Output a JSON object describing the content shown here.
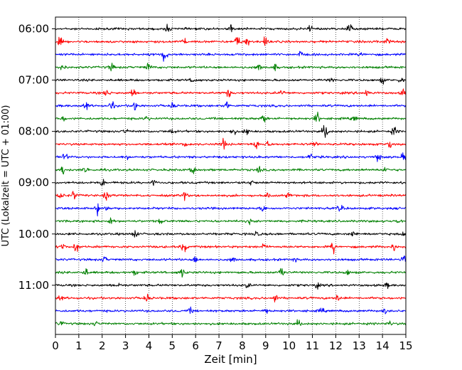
{
  "chart_data": {
    "type": "line",
    "subtype": "helicorder",
    "title": "",
    "xlabel": "Zeit  [min]",
    "ylabel": "UTC (Lokalzeit = UTC + 01:00)",
    "xlim": [
      0,
      15
    ],
    "x_ticks": [
      0,
      1,
      2,
      3,
      4,
      5,
      6,
      7,
      8,
      9,
      10,
      11,
      12,
      13,
      14,
      15
    ],
    "x_tick_labels": [
      "0",
      "1",
      "2",
      "3",
      "4",
      "5",
      "6",
      "7",
      "8",
      "9",
      "10",
      "11",
      "12",
      "13",
      "14",
      "15"
    ],
    "y_ticks": [
      "06:00",
      "07:00",
      "08:00",
      "09:00",
      "10:00",
      "11:00"
    ],
    "grid": "vertical dotted",
    "row_minutes": 15,
    "trace_colors": [
      "#000000",
      "#ff0000",
      "#0000ff",
      "#008000"
    ],
    "traces": [
      {
        "start": "06:00",
        "events": [
          [
            4.8,
            0.7
          ],
          [
            7.5,
            0.8
          ],
          [
            10.9,
            0.6
          ],
          [
            12.6,
            1.0
          ]
        ]
      },
      {
        "start": "06:15",
        "events": [
          [
            0.2,
            0.8
          ],
          [
            5.5,
            0.9
          ],
          [
            7.8,
            1.7
          ],
          [
            8.2,
            0.9
          ],
          [
            9.0,
            1.0
          ],
          [
            14.2,
            0.6
          ]
        ]
      },
      {
        "start": "06:30",
        "events": [
          [
            4.6,
            1.0
          ],
          [
            4.7,
            0.9
          ],
          [
            10.5,
            0.6
          ],
          [
            13.1,
            0.5
          ]
        ]
      },
      {
        "start": "06:45",
        "events": [
          [
            0.3,
            0.8
          ],
          [
            2.4,
            0.8
          ],
          [
            4.0,
            1.0
          ],
          [
            8.7,
            0.9
          ],
          [
            9.4,
            0.6
          ]
        ]
      },
      {
        "start": "07:00",
        "events": [
          [
            5.9,
            0.8
          ],
          [
            11.8,
            0.5
          ],
          [
            14.0,
            0.6
          ],
          [
            14.8,
            0.6
          ]
        ]
      },
      {
        "start": "07:15",
        "events": [
          [
            2.2,
            1.0
          ],
          [
            3.3,
            0.9
          ],
          [
            7.4,
            1.0
          ],
          [
            9.7,
            0.6
          ],
          [
            13.3,
            0.7
          ],
          [
            14.9,
            0.7
          ]
        ]
      },
      {
        "start": "07:30",
        "events": [
          [
            1.3,
            1.0
          ],
          [
            2.4,
            1.0
          ],
          [
            3.4,
            1.1
          ],
          [
            5.0,
            0.6
          ],
          [
            7.3,
            1.2
          ]
        ]
      },
      {
        "start": "07:45",
        "events": [
          [
            0.3,
            0.6
          ],
          [
            3.9,
            0.6
          ],
          [
            8.9,
            1.0
          ],
          [
            11.2,
            1.2
          ],
          [
            12.8,
            0.5
          ]
        ]
      },
      {
        "start": "08:00",
        "events": [
          [
            3.0,
            0.5
          ],
          [
            5.0,
            0.6
          ],
          [
            7.6,
            0.8
          ],
          [
            8.2,
            0.7
          ],
          [
            11.5,
            1.0
          ],
          [
            11.6,
            0.8
          ],
          [
            14.5,
            1.0
          ]
        ]
      },
      {
        "start": "08:15",
        "events": [
          [
            5.6,
            0.6
          ],
          [
            7.2,
            1.2
          ],
          [
            8.6,
            1.0
          ],
          [
            9.1,
            0.6
          ],
          [
            11.1,
            0.6
          ],
          [
            14.3,
            0.8
          ]
        ]
      },
      {
        "start": "08:30",
        "events": [
          [
            0.4,
            0.9
          ],
          [
            3.1,
            0.5
          ],
          [
            10.9,
            0.6
          ],
          [
            13.8,
            1.0
          ],
          [
            14.9,
            0.7
          ]
        ]
      },
      {
        "start": "08:45",
        "events": [
          [
            0.3,
            1.0
          ],
          [
            1.3,
            0.6
          ],
          [
            5.9,
            0.9
          ],
          [
            8.7,
            0.6
          ],
          [
            14.1,
            0.6
          ]
        ]
      },
      {
        "start": "09:00",
        "events": [
          [
            2.0,
            0.8
          ],
          [
            4.2,
            0.5
          ],
          [
            8.4,
            0.6
          ],
          [
            13.9,
            0.5
          ]
        ]
      },
      {
        "start": "09:15",
        "events": [
          [
            0.2,
            0.7
          ],
          [
            0.8,
            1.0
          ],
          [
            2.2,
            1.0
          ],
          [
            5.5,
            1.0
          ],
          [
            9.1,
            0.6
          ],
          [
            10.0,
            0.6
          ]
        ]
      },
      {
        "start": "09:30",
        "events": [
          [
            1.8,
            1.1
          ],
          [
            2.2,
            0.6
          ],
          [
            8.9,
            0.7
          ],
          [
            12.2,
            0.8
          ]
        ]
      },
      {
        "start": "09:45",
        "events": [
          [
            2.4,
            0.8
          ],
          [
            4.5,
            0.5
          ],
          [
            8.3,
            0.5
          ],
          [
            14.7,
            0.5
          ]
        ]
      },
      {
        "start": "10:00",
        "events": [
          [
            3.4,
            0.9
          ],
          [
            8.6,
            0.5
          ],
          [
            12.8,
            0.8
          ],
          [
            14.9,
            0.5
          ]
        ]
      },
      {
        "start": "10:15",
        "events": [
          [
            0.3,
            0.8
          ],
          [
            0.9,
            1.1
          ],
          [
            5.5,
            1.3
          ],
          [
            8.9,
            0.6
          ],
          [
            11.9,
            1.2
          ],
          [
            14.5,
            0.8
          ]
        ]
      },
      {
        "start": "10:30",
        "events": [
          [
            2.1,
            0.6
          ],
          [
            6.0,
            0.7
          ],
          [
            7.6,
            0.7
          ],
          [
            10.2,
            0.5
          ],
          [
            14.9,
            0.9
          ]
        ]
      },
      {
        "start": "10:45",
        "events": [
          [
            1.3,
            0.8
          ],
          [
            3.4,
            0.5
          ],
          [
            5.4,
            1.2
          ],
          [
            9.7,
            1.5
          ],
          [
            12.5,
            0.5
          ]
        ]
      },
      {
        "start": "11:00",
        "events": [
          [
            2.7,
            0.5
          ],
          [
            8.2,
            0.6
          ],
          [
            11.2,
            0.5
          ],
          [
            14.2,
            0.5
          ]
        ]
      },
      {
        "start": "11:15",
        "events": [
          [
            0.2,
            0.7
          ],
          [
            3.9,
            0.9
          ],
          [
            9.4,
            0.9
          ],
          [
            12.1,
            0.9
          ]
        ]
      },
      {
        "start": "11:30",
        "events": [
          [
            5.8,
            0.5
          ],
          [
            9.0,
            0.5
          ],
          [
            11.4,
            0.5
          ],
          [
            14.1,
            0.5
          ]
        ]
      },
      {
        "start": "11:45",
        "events": [
          [
            0.2,
            0.6
          ],
          [
            1.7,
            0.5
          ],
          [
            10.4,
            0.7
          ],
          [
            14.3,
            0.5
          ]
        ]
      }
    ]
  }
}
